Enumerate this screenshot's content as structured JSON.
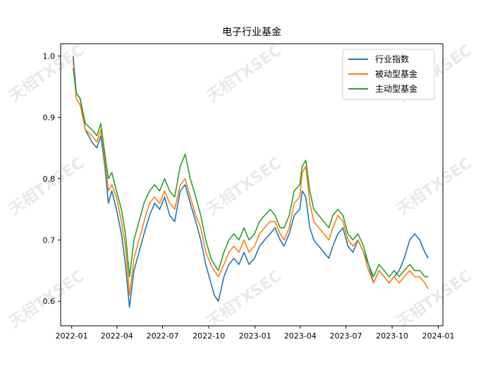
{
  "chart_data": {
    "type": "line",
    "title": "电子行业基金",
    "xlabel": "",
    "ylabel": "",
    "x_tick_labels": [
      "2022-01",
      "2022-04",
      "2022-07",
      "2022-10",
      "2023-01",
      "2023-04",
      "2023-07",
      "2023-10",
      "2024-01"
    ],
    "y_tick_labels": [
      "0.6",
      "0.7",
      "0.8",
      "0.9",
      "1.0"
    ],
    "xlim": [
      "2021-12-10",
      "2024-01-10"
    ],
    "ylim": [
      0.56,
      1.02
    ],
    "grid": false,
    "legend_position": "top-right",
    "watermark": "天相TXSEC",
    "series": [
      {
        "name": "行业指数",
        "color": "#1f77b4",
        "points": [
          [
            "2022-01-04",
            1.0
          ],
          [
            "2022-01-10",
            0.94
          ],
          [
            "2022-01-18",
            0.93
          ],
          [
            "2022-01-28",
            0.88
          ],
          [
            "2022-02-10",
            0.86
          ],
          [
            "2022-02-20",
            0.85
          ],
          [
            "2022-02-28",
            0.87
          ],
          [
            "2022-03-08",
            0.82
          ],
          [
            "2022-03-15",
            0.76
          ],
          [
            "2022-03-22",
            0.78
          ],
          [
            "2022-03-31",
            0.75
          ],
          [
            "2022-04-10",
            0.71
          ],
          [
            "2022-04-18",
            0.66
          ],
          [
            "2022-04-26",
            0.59
          ],
          [
            "2022-05-05",
            0.65
          ],
          [
            "2022-05-15",
            0.68
          ],
          [
            "2022-05-25",
            0.71
          ],
          [
            "2022-06-05",
            0.74
          ],
          [
            "2022-06-15",
            0.76
          ],
          [
            "2022-06-25",
            0.75
          ],
          [
            "2022-07-05",
            0.77
          ],
          [
            "2022-07-15",
            0.74
          ],
          [
            "2022-07-25",
            0.73
          ],
          [
            "2022-08-05",
            0.78
          ],
          [
            "2022-08-15",
            0.79
          ],
          [
            "2022-08-25",
            0.76
          ],
          [
            "2022-09-05",
            0.73
          ],
          [
            "2022-09-15",
            0.7
          ],
          [
            "2022-09-25",
            0.66
          ],
          [
            "2022-10-05",
            0.63
          ],
          [
            "2022-10-12",
            0.61
          ],
          [
            "2022-10-20",
            0.6
          ],
          [
            "2022-10-31",
            0.64
          ],
          [
            "2022-11-10",
            0.66
          ],
          [
            "2022-11-20",
            0.67
          ],
          [
            "2022-11-30",
            0.66
          ],
          [
            "2022-12-10",
            0.68
          ],
          [
            "2022-12-20",
            0.66
          ],
          [
            "2022-12-31",
            0.67
          ],
          [
            "2023-01-10",
            0.69
          ],
          [
            "2023-01-20",
            0.7
          ],
          [
            "2023-01-31",
            0.71
          ],
          [
            "2023-02-10",
            0.72
          ],
          [
            "2023-02-20",
            0.7
          ],
          [
            "2023-02-28",
            0.69
          ],
          [
            "2023-03-10",
            0.71
          ],
          [
            "2023-03-20",
            0.74
          ],
          [
            "2023-03-31",
            0.75
          ],
          [
            "2023-04-05",
            0.78
          ],
          [
            "2023-04-12",
            0.77
          ],
          [
            "2023-04-20",
            0.72
          ],
          [
            "2023-04-28",
            0.7
          ],
          [
            "2023-05-08",
            0.69
          ],
          [
            "2023-05-18",
            0.68
          ],
          [
            "2023-05-28",
            0.67
          ],
          [
            "2023-06-05",
            0.69
          ],
          [
            "2023-06-15",
            0.71
          ],
          [
            "2023-06-25",
            0.72
          ],
          [
            "2023-07-05",
            0.69
          ],
          [
            "2023-07-15",
            0.68
          ],
          [
            "2023-07-25",
            0.7
          ],
          [
            "2023-08-05",
            0.68
          ],
          [
            "2023-08-15",
            0.66
          ],
          [
            "2023-08-25",
            0.63
          ],
          [
            "2023-09-05",
            0.65
          ],
          [
            "2023-09-15",
            0.64
          ],
          [
            "2023-09-25",
            0.63
          ],
          [
            "2023-10-05",
            0.64
          ],
          [
            "2023-10-15",
            0.65
          ],
          [
            "2023-10-25",
            0.67
          ],
          [
            "2023-11-05",
            0.7
          ],
          [
            "2023-11-15",
            0.71
          ],
          [
            "2023-11-25",
            0.7
          ],
          [
            "2023-12-05",
            0.68
          ],
          [
            "2023-12-12",
            0.67
          ]
        ]
      },
      {
        "name": "被动型基金",
        "color": "#ff7f0e",
        "points": [
          [
            "2022-01-04",
            0.99
          ],
          [
            "2022-01-10",
            0.93
          ],
          [
            "2022-01-18",
            0.92
          ],
          [
            "2022-01-28",
            0.88
          ],
          [
            "2022-02-10",
            0.87
          ],
          [
            "2022-02-20",
            0.86
          ],
          [
            "2022-02-28",
            0.88
          ],
          [
            "2022-03-08",
            0.83
          ],
          [
            "2022-03-15",
            0.78
          ],
          [
            "2022-03-22",
            0.79
          ],
          [
            "2022-03-31",
            0.77
          ],
          [
            "2022-04-10",
            0.73
          ],
          [
            "2022-04-18",
            0.69
          ],
          [
            "2022-04-26",
            0.61
          ],
          [
            "2022-05-05",
            0.67
          ],
          [
            "2022-05-15",
            0.7
          ],
          [
            "2022-05-25",
            0.73
          ],
          [
            "2022-06-05",
            0.76
          ],
          [
            "2022-06-15",
            0.77
          ],
          [
            "2022-06-25",
            0.76
          ],
          [
            "2022-07-05",
            0.78
          ],
          [
            "2022-07-15",
            0.76
          ],
          [
            "2022-07-25",
            0.75
          ],
          [
            "2022-08-05",
            0.79
          ],
          [
            "2022-08-15",
            0.8
          ],
          [
            "2022-08-25",
            0.77
          ],
          [
            "2022-09-05",
            0.74
          ],
          [
            "2022-09-15",
            0.72
          ],
          [
            "2022-09-25",
            0.68
          ],
          [
            "2022-10-05",
            0.66
          ],
          [
            "2022-10-12",
            0.65
          ],
          [
            "2022-10-20",
            0.64
          ],
          [
            "2022-10-31",
            0.66
          ],
          [
            "2022-11-10",
            0.68
          ],
          [
            "2022-11-20",
            0.69
          ],
          [
            "2022-11-30",
            0.68
          ],
          [
            "2022-12-10",
            0.7
          ],
          [
            "2022-12-20",
            0.68
          ],
          [
            "2022-12-31",
            0.69
          ],
          [
            "2023-01-10",
            0.71
          ],
          [
            "2023-01-20",
            0.72
          ],
          [
            "2023-01-31",
            0.73
          ],
          [
            "2023-02-10",
            0.73
          ],
          [
            "2023-02-20",
            0.71
          ],
          [
            "2023-02-28",
            0.7
          ],
          [
            "2023-03-10",
            0.72
          ],
          [
            "2023-03-20",
            0.76
          ],
          [
            "2023-03-31",
            0.77
          ],
          [
            "2023-04-05",
            0.81
          ],
          [
            "2023-04-12",
            0.82
          ],
          [
            "2023-04-20",
            0.76
          ],
          [
            "2023-04-28",
            0.73
          ],
          [
            "2023-05-08",
            0.72
          ],
          [
            "2023-05-18",
            0.71
          ],
          [
            "2023-05-28",
            0.7
          ],
          [
            "2023-06-05",
            0.72
          ],
          [
            "2023-06-15",
            0.74
          ],
          [
            "2023-06-25",
            0.73
          ],
          [
            "2023-07-05",
            0.7
          ],
          [
            "2023-07-15",
            0.69
          ],
          [
            "2023-07-25",
            0.7
          ],
          [
            "2023-08-05",
            0.68
          ],
          [
            "2023-08-15",
            0.65
          ],
          [
            "2023-08-25",
            0.63
          ],
          [
            "2023-09-05",
            0.65
          ],
          [
            "2023-09-15",
            0.64
          ],
          [
            "2023-09-25",
            0.63
          ],
          [
            "2023-10-05",
            0.64
          ],
          [
            "2023-10-15",
            0.63
          ],
          [
            "2023-10-25",
            0.64
          ],
          [
            "2023-11-05",
            0.65
          ],
          [
            "2023-11-15",
            0.64
          ],
          [
            "2023-11-25",
            0.64
          ],
          [
            "2023-12-05",
            0.63
          ],
          [
            "2023-12-12",
            0.62
          ]
        ]
      },
      {
        "name": "主动型基金",
        "color": "#2ca02c",
        "points": [
          [
            "2022-01-04",
            0.98
          ],
          [
            "2022-01-10",
            0.94
          ],
          [
            "2022-01-18",
            0.93
          ],
          [
            "2022-01-28",
            0.89
          ],
          [
            "2022-02-10",
            0.88
          ],
          [
            "2022-02-20",
            0.87
          ],
          [
            "2022-02-28",
            0.89
          ],
          [
            "2022-03-08",
            0.84
          ],
          [
            "2022-03-15",
            0.8
          ],
          [
            "2022-03-22",
            0.81
          ],
          [
            "2022-03-31",
            0.78
          ],
          [
            "2022-04-10",
            0.75
          ],
          [
            "2022-04-18",
            0.71
          ],
          [
            "2022-04-26",
            0.64
          ],
          [
            "2022-05-05",
            0.7
          ],
          [
            "2022-05-15",
            0.73
          ],
          [
            "2022-05-25",
            0.76
          ],
          [
            "2022-06-05",
            0.78
          ],
          [
            "2022-06-15",
            0.79
          ],
          [
            "2022-06-25",
            0.78
          ],
          [
            "2022-07-05",
            0.8
          ],
          [
            "2022-07-15",
            0.78
          ],
          [
            "2022-07-25",
            0.77
          ],
          [
            "2022-08-05",
            0.82
          ],
          [
            "2022-08-15",
            0.84
          ],
          [
            "2022-08-25",
            0.8
          ],
          [
            "2022-09-05",
            0.77
          ],
          [
            "2022-09-15",
            0.74
          ],
          [
            "2022-09-25",
            0.7
          ],
          [
            "2022-10-05",
            0.67
          ],
          [
            "2022-10-12",
            0.66
          ],
          [
            "2022-10-20",
            0.65
          ],
          [
            "2022-10-31",
            0.68
          ],
          [
            "2022-11-10",
            0.7
          ],
          [
            "2022-11-20",
            0.71
          ],
          [
            "2022-11-30",
            0.7
          ],
          [
            "2022-12-10",
            0.72
          ],
          [
            "2022-12-20",
            0.7
          ],
          [
            "2022-12-31",
            0.71
          ],
          [
            "2023-01-10",
            0.73
          ],
          [
            "2023-01-20",
            0.74
          ],
          [
            "2023-01-31",
            0.75
          ],
          [
            "2023-02-10",
            0.74
          ],
          [
            "2023-02-20",
            0.72
          ],
          [
            "2023-02-28",
            0.72
          ],
          [
            "2023-03-10",
            0.74
          ],
          [
            "2023-03-20",
            0.78
          ],
          [
            "2023-03-31",
            0.79
          ],
          [
            "2023-04-05",
            0.82
          ],
          [
            "2023-04-12",
            0.83
          ],
          [
            "2023-04-20",
            0.78
          ],
          [
            "2023-04-28",
            0.75
          ],
          [
            "2023-05-08",
            0.74
          ],
          [
            "2023-05-18",
            0.73
          ],
          [
            "2023-05-28",
            0.72
          ],
          [
            "2023-06-05",
            0.74
          ],
          [
            "2023-06-15",
            0.75
          ],
          [
            "2023-06-25",
            0.74
          ],
          [
            "2023-07-05",
            0.71
          ],
          [
            "2023-07-15",
            0.7
          ],
          [
            "2023-07-25",
            0.71
          ],
          [
            "2023-08-05",
            0.69
          ],
          [
            "2023-08-15",
            0.66
          ],
          [
            "2023-08-25",
            0.64
          ],
          [
            "2023-09-05",
            0.66
          ],
          [
            "2023-09-15",
            0.65
          ],
          [
            "2023-09-25",
            0.64
          ],
          [
            "2023-10-05",
            0.65
          ],
          [
            "2023-10-15",
            0.64
          ],
          [
            "2023-10-25",
            0.65
          ],
          [
            "2023-11-05",
            0.66
          ],
          [
            "2023-11-15",
            0.65
          ],
          [
            "2023-11-25",
            0.65
          ],
          [
            "2023-12-05",
            0.64
          ],
          [
            "2023-12-12",
            0.64
          ]
        ]
      }
    ]
  }
}
